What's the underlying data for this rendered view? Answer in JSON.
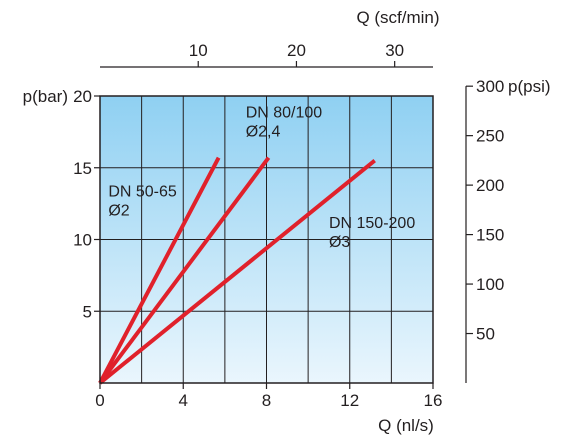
{
  "chart_data": {
    "type": "line",
    "colors": {
      "series": "#e0212b",
      "frame": "#231f20",
      "grid": "#231f20",
      "bg_top": "#8fd0f2",
      "bg_bottom": "#eaf6fd"
    },
    "grid": true,
    "x_axis": {
      "label": "Q (nl/s)",
      "lim": [
        0,
        16
      ],
      "ticks": [
        0,
        4,
        8,
        12,
        16
      ],
      "tick_labels": [
        "0",
        "4",
        "8",
        "12",
        "16"
      ],
      "grid_step": 2
    },
    "y_axis": {
      "label": "p(bar)",
      "lim": [
        0,
        20
      ],
      "ticks": [
        5,
        10,
        15,
        20
      ],
      "tick_labels": [
        "5",
        "10",
        "15",
        "20"
      ],
      "grid_step": 5
    },
    "x_axis_top": {
      "label": "Q (scf/min)",
      "ticks": [
        10,
        20,
        30
      ],
      "tick_labels": [
        "10",
        "20",
        "30"
      ],
      "scf_per_nls": 2.1189
    },
    "y_axis_right": {
      "label": "p(psi)",
      "ticks": [
        50,
        100,
        150,
        200,
        250,
        300
      ],
      "tick_labels": [
        "50",
        "100",
        "150",
        "200",
        "250",
        "300"
      ],
      "psi_per_bar": 14.5038
    },
    "series": [
      {
        "x": [
          0,
          5.7
        ],
        "y": [
          0,
          15.7
        ]
      },
      {
        "x": [
          0,
          8.1
        ],
        "y": [
          0,
          15.7
        ]
      },
      {
        "x": [
          0,
          13.2
        ],
        "y": [
          0,
          15.5
        ]
      }
    ],
    "annotations": [
      {
        "lines": [
          "DN 50-65",
          "Ø2"
        ],
        "x": 0.4,
        "y": 13.0
      },
      {
        "lines": [
          "DN 80/100",
          "Ø2,4"
        ],
        "x": 7.0,
        "y": 18.5
      },
      {
        "lines": [
          "DN 150-200",
          "Ø3"
        ],
        "x": 11.0,
        "y": 10.8
      }
    ]
  }
}
